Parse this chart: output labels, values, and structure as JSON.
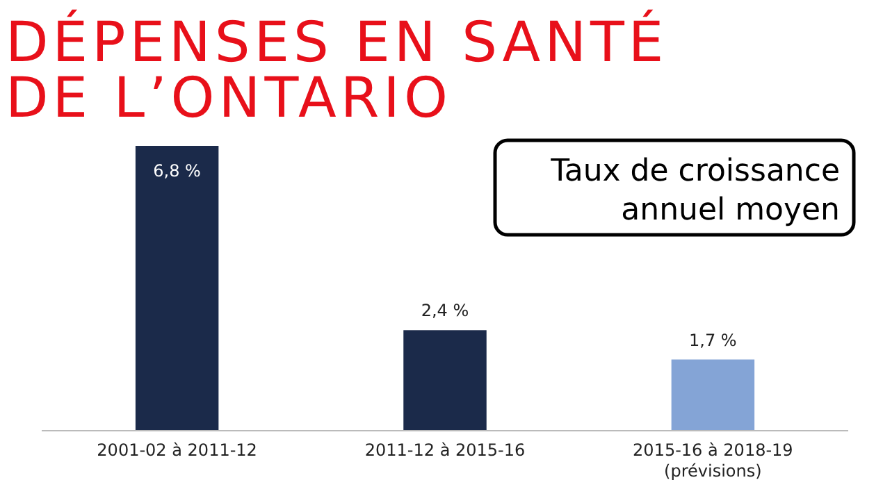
{
  "chart_data": {
    "type": "bar",
    "relative": false,
    "title": "DÉPENSES EN SANTÉ\nDE L’ONTARIO",
    "subtitle": "Taux de croissance\nannuel moyen",
    "categories": [
      "2001-02 à 2011-12",
      "2011-12 à 2015-16",
      "2015-16 à 2018-19\n(prévisions)"
    ],
    "values": [
      6.8,
      2.4,
      1.7
    ],
    "colors": [
      "#1b2a4a",
      "#1b2a4a",
      "#84a4d6"
    ],
    "value_labels": [
      "6,8 %",
      "2,4 %",
      "1,7 %"
    ]
  }
}
